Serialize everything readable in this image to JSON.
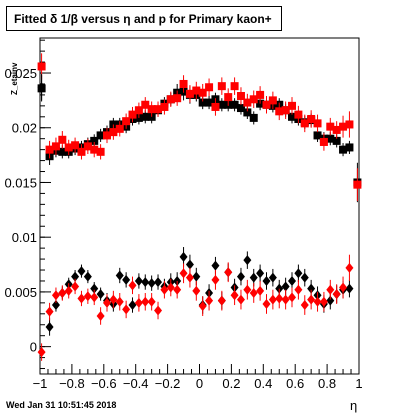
{
  "title": "Fitted δ 1/β versus η and p for Primary kaon+",
  "footer": "Wed Jan 31 10:51:45 2018",
  "chart_data": {
    "type": "scatter",
    "title": "Fitted δ 1/β versus η and p for Primary kaon+",
    "xlabel": "η",
    "ylabel": "Z_etainv",
    "xlim": [
      -1,
      1
    ],
    "ylim": [
      -0.0025,
      0.0282
    ],
    "x_ticks": [
      -1,
      -0.8,
      -0.6,
      -0.4,
      -0.2,
      0,
      0.2,
      0.4,
      0.6,
      0.8,
      1
    ],
    "x_tick_labels": [
      "−1",
      "−0.8",
      "−0.6",
      "−0.4",
      "−0.2",
      "0",
      "0.2",
      "0.4",
      "0.6",
      "0.8",
      "1"
    ],
    "y_ticks": [
      0,
      0.005,
      0.01,
      0.015,
      0.02,
      0.025
    ],
    "y_tick_labels": [
      "0",
      "0.005",
      "0.01",
      "0.015",
      "0.02",
      "0.025"
    ],
    "grid": false,
    "series": [
      {
        "color": "#000000",
        "marker": "square",
        "x": [
          -0.99,
          -0.94,
          -0.9,
          -0.86,
          -0.82,
          -0.78,
          -0.74,
          -0.7,
          -0.66,
          -0.62,
          -0.58,
          -0.54,
          -0.5,
          -0.46,
          -0.42,
          -0.38,
          -0.34,
          -0.3,
          -0.26,
          -0.22,
          -0.18,
          -0.14,
          -0.1,
          -0.06,
          -0.02,
          0.02,
          0.06,
          0.1,
          0.14,
          0.18,
          0.22,
          0.26,
          0.3,
          0.34,
          0.38,
          0.42,
          0.46,
          0.5,
          0.54,
          0.58,
          0.62,
          0.66,
          0.7,
          0.74,
          0.78,
          0.82,
          0.86,
          0.9,
          0.94,
          0.99
        ],
        "y": [
          0.0236,
          0.0174,
          0.0179,
          0.0178,
          0.0178,
          0.0181,
          0.0182,
          0.0185,
          0.0188,
          0.0193,
          0.0196,
          0.0203,
          0.0203,
          0.0201,
          0.0208,
          0.0209,
          0.021,
          0.021,
          0.0216,
          0.0222,
          0.0226,
          0.0232,
          0.0233,
          0.023,
          0.023,
          0.0223,
          0.0223,
          0.0226,
          0.0221,
          0.0221,
          0.0221,
          0.0218,
          0.0214,
          0.0209,
          0.0222,
          0.0221,
          0.022,
          0.0221,
          0.0216,
          0.021,
          0.0208,
          0.0205,
          0.0207,
          0.0193,
          0.019,
          0.019,
          0.0188,
          0.018,
          0.0182,
          0.015
        ],
        "err": [
          0.0012,
          0.0008,
          0.0006,
          0.0006,
          0.0006,
          0.0006,
          0.0006,
          0.0006,
          0.0006,
          0.0006,
          0.0006,
          0.0006,
          0.0006,
          0.0006,
          0.0006,
          0.0006,
          0.0006,
          0.0006,
          0.0006,
          0.0006,
          0.0006,
          0.0008,
          0.0008,
          0.0008,
          0.0006,
          0.0006,
          0.0006,
          0.0006,
          0.0006,
          0.0006,
          0.0006,
          0.0006,
          0.0006,
          0.0006,
          0.0006,
          0.0006,
          0.0006,
          0.0006,
          0.0006,
          0.0006,
          0.0006,
          0.0006,
          0.0006,
          0.0006,
          0.0006,
          0.0006,
          0.0006,
          0.0006,
          0.0006,
          0.0018
        ]
      },
      {
        "color": "#ff0000",
        "marker": "square",
        "x": [
          -0.99,
          -0.94,
          -0.9,
          -0.86,
          -0.82,
          -0.78,
          -0.74,
          -0.7,
          -0.66,
          -0.62,
          -0.58,
          -0.54,
          -0.5,
          -0.46,
          -0.42,
          -0.38,
          -0.34,
          -0.3,
          -0.26,
          -0.22,
          -0.18,
          -0.14,
          -0.1,
          -0.06,
          -0.02,
          0.02,
          0.06,
          0.1,
          0.14,
          0.18,
          0.22,
          0.26,
          0.3,
          0.34,
          0.38,
          0.42,
          0.46,
          0.5,
          0.54,
          0.58,
          0.62,
          0.66,
          0.7,
          0.74,
          0.78,
          0.82,
          0.86,
          0.9,
          0.94,
          0.99
        ],
        "y": [
          0.0256,
          0.018,
          0.0183,
          0.0189,
          0.0182,
          0.0184,
          0.0178,
          0.0183,
          0.018,
          0.0178,
          0.0193,
          0.0196,
          0.0199,
          0.0206,
          0.0212,
          0.0216,
          0.0221,
          0.0217,
          0.0217,
          0.0219,
          0.0226,
          0.0227,
          0.024,
          0.0231,
          0.0234,
          0.0232,
          0.0237,
          0.0219,
          0.0238,
          0.0228,
          0.0238,
          0.0229,
          0.0223,
          0.0226,
          0.023,
          0.0221,
          0.0225,
          0.0215,
          0.0216,
          0.022,
          0.0212,
          0.0204,
          0.0208,
          0.0204,
          0.0187,
          0.0201,
          0.0198,
          0.0201,
          0.0203,
          0.0148
        ],
        "err": [
          0.0012,
          0.0008,
          0.0008,
          0.0008,
          0.0007,
          0.0007,
          0.0007,
          0.0007,
          0.0007,
          0.0007,
          0.0007,
          0.0007,
          0.0007,
          0.0007,
          0.0007,
          0.0007,
          0.0007,
          0.0007,
          0.0007,
          0.0007,
          0.0007,
          0.0007,
          0.0008,
          0.0008,
          0.0008,
          0.0008,
          0.0008,
          0.0008,
          0.0008,
          0.0008,
          0.0008,
          0.0008,
          0.0008,
          0.0008,
          0.0008,
          0.0008,
          0.0008,
          0.0008,
          0.0008,
          0.0008,
          0.0008,
          0.0008,
          0.0008,
          0.0008,
          0.0008,
          0.0008,
          0.0008,
          0.001,
          0.0012,
          0.0015
        ]
      },
      {
        "color": "#000000",
        "marker": "diamond",
        "x": [
          -0.99,
          -0.94,
          -0.9,
          -0.86,
          -0.82,
          -0.78,
          -0.74,
          -0.7,
          -0.66,
          -0.62,
          -0.58,
          -0.54,
          -0.5,
          -0.46,
          -0.42,
          -0.38,
          -0.34,
          -0.3,
          -0.26,
          -0.22,
          -0.18,
          -0.14,
          -0.1,
          -0.06,
          -0.02,
          0.02,
          0.06,
          0.1,
          0.14,
          0.18,
          0.22,
          0.26,
          0.3,
          0.34,
          0.38,
          0.42,
          0.46,
          0.5,
          0.54,
          0.58,
          0.62,
          0.66,
          0.7,
          0.74,
          0.78,
          0.82,
          0.86,
          0.9,
          0.94
        ],
        "y": [
          0.0237,
          0.0018,
          0.0038,
          0.0049,
          0.0057,
          0.0064,
          0.0069,
          0.0064,
          0.0053,
          0.0048,
          0.0042,
          0.0039,
          0.0065,
          0.0061,
          0.0038,
          0.006,
          0.0059,
          0.0058,
          0.0059,
          0.0055,
          0.0059,
          0.006,
          0.0082,
          0.0075,
          0.0064,
          0.0038,
          0.0049,
          0.0074,
          0.0042,
          0.0068,
          0.0054,
          0.0064,
          0.0079,
          0.0063,
          0.0067,
          0.006,
          0.0063,
          0.0053,
          0.0055,
          0.006,
          0.0067,
          0.0063,
          0.0053,
          0.0047,
          0.0039,
          0.0042,
          0.0048,
          0.0052,
          0.0053
        ],
        "err": [
          0.0012,
          0.0008,
          0.0006,
          0.0006,
          0.0006,
          0.0006,
          0.0006,
          0.0006,
          0.0006,
          0.0006,
          0.0007,
          0.0007,
          0.0007,
          0.0007,
          0.0007,
          0.0007,
          0.0007,
          0.0007,
          0.0007,
          0.0007,
          0.0008,
          0.0008,
          0.0009,
          0.0009,
          0.0008,
          0.0008,
          0.0008,
          0.0008,
          0.0008,
          0.0008,
          0.0008,
          0.0008,
          0.0008,
          0.0008,
          0.0008,
          0.0008,
          0.0008,
          0.0008,
          0.0008,
          0.0008,
          0.0008,
          0.0008,
          0.0008,
          0.0008,
          0.0008,
          0.0008,
          0.0008,
          0.0008,
          0.0008
        ]
      },
      {
        "color": "#ff0000",
        "marker": "diamond",
        "x": [
          -0.99,
          -0.94,
          -0.9,
          -0.86,
          -0.82,
          -0.78,
          -0.74,
          -0.7,
          -0.66,
          -0.62,
          -0.58,
          -0.54,
          -0.5,
          -0.46,
          -0.42,
          -0.38,
          -0.34,
          -0.3,
          -0.26,
          -0.22,
          -0.18,
          -0.14,
          -0.1,
          -0.06,
          -0.02,
          0.02,
          0.06,
          0.1,
          0.14,
          0.18,
          0.22,
          0.26,
          0.3,
          0.34,
          0.38,
          0.42,
          0.46,
          0.5,
          0.54,
          0.58,
          0.62,
          0.66,
          0.7,
          0.74,
          0.78,
          0.82,
          0.86,
          0.9,
          0.94
        ],
        "y": [
          -0.0005,
          0.0032,
          0.0047,
          0.0049,
          0.0051,
          0.0055,
          0.0044,
          0.0046,
          0.0045,
          0.0028,
          0.004,
          0.0043,
          0.0041,
          0.0034,
          0.0056,
          0.004,
          0.0041,
          0.0041,
          0.0033,
          0.0052,
          0.0054,
          0.0052,
          0.0067,
          0.0063,
          0.0051,
          0.0037,
          0.0042,
          0.0061,
          0.0042,
          0.0068,
          0.0047,
          0.0043,
          0.0052,
          0.0049,
          0.0051,
          0.0039,
          0.0043,
          0.0044,
          0.0043,
          0.0045,
          0.0052,
          0.0038,
          0.0043,
          0.0041,
          0.0041,
          0.0052,
          0.0048,
          0.0054,
          0.0072
        ],
        "err": [
          0.0008,
          0.0008,
          0.0007,
          0.0007,
          0.0007,
          0.0007,
          0.0007,
          0.0007,
          0.0007,
          0.0008,
          0.0008,
          0.0008,
          0.0008,
          0.0008,
          0.0008,
          0.0008,
          0.0008,
          0.0008,
          0.0008,
          0.0008,
          0.0008,
          0.0008,
          0.0009,
          0.0009,
          0.0009,
          0.0009,
          0.0009,
          0.0009,
          0.0009,
          0.0009,
          0.0009,
          0.0009,
          0.0009,
          0.0009,
          0.0009,
          0.0009,
          0.0009,
          0.0009,
          0.0009,
          0.0009,
          0.0009,
          0.0009,
          0.0009,
          0.0009,
          0.0009,
          0.0009,
          0.0009,
          0.001,
          0.0012
        ]
      }
    ]
  }
}
